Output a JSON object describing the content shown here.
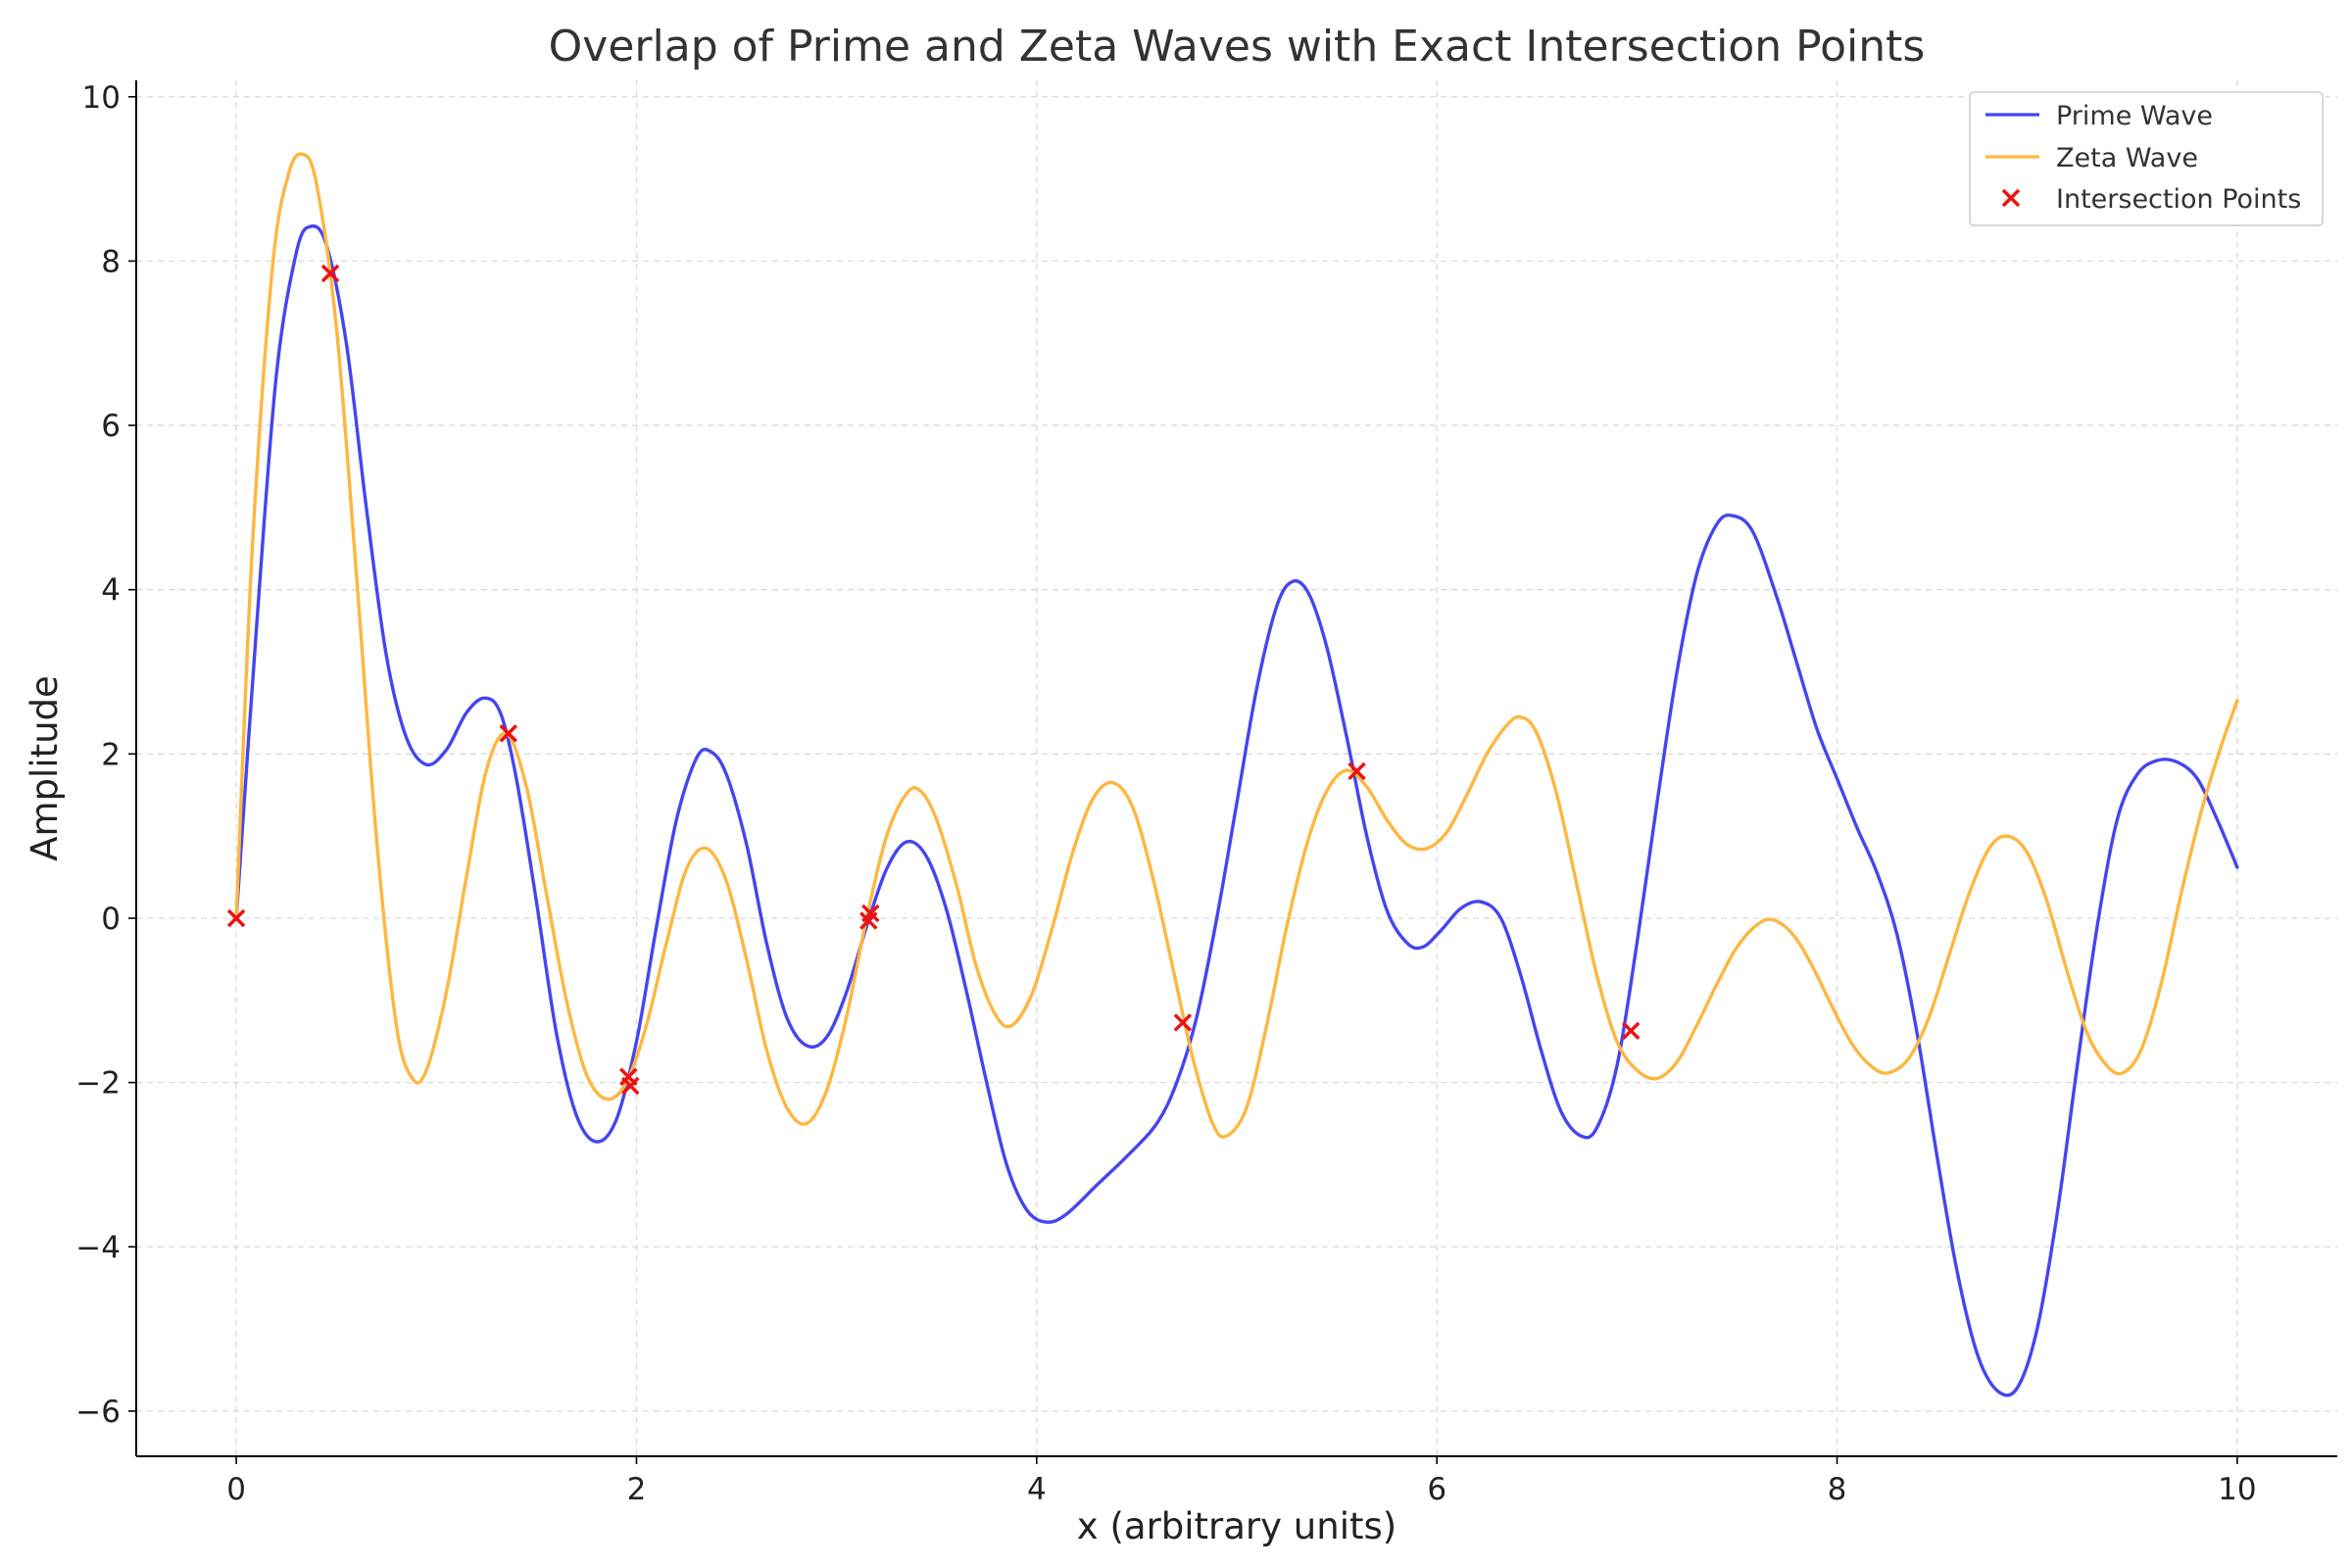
{
  "chart_data": {
    "type": "line",
    "title": "Overlap of Prime and Zeta Waves with Exact Intersection Points",
    "xlabel": "x (arbitrary units)",
    "ylabel": "Amplitude",
    "xlim": [
      -0.5,
      10.5
    ],
    "ylim": [
      -6.55,
      10.2
    ],
    "xticks": [
      0,
      2,
      4,
      6,
      8,
      10
    ],
    "yticks": [
      -6,
      -4,
      -2,
      0,
      2,
      4,
      6,
      8,
      10
    ],
    "xtick_labels": [
      "0",
      "2",
      "4",
      "6",
      "8",
      "10"
    ],
    "ytick_labels": [
      "−6",
      "−4",
      "−2",
      "0",
      "2",
      "4",
      "6",
      "8",
      "10"
    ],
    "grid": true,
    "legend_position": "top-right",
    "series": [
      {
        "name": "Prime Wave",
        "color": "#4545f0",
        "kind": "line",
        "points": [
          [
            0,
            0
          ],
          [
            0.1,
            3.5
          ],
          [
            0.2,
            6.6
          ],
          [
            0.3,
            8.1
          ],
          [
            0.37,
            8.42
          ],
          [
            0.45,
            8.2
          ],
          [
            0.55,
            7.0
          ],
          [
            0.65,
            5.0
          ],
          [
            0.75,
            3.2
          ],
          [
            0.85,
            2.2
          ],
          [
            0.95,
            1.87
          ],
          [
            1.05,
            2.05
          ],
          [
            1.15,
            2.5
          ],
          [
            1.24,
            2.68
          ],
          [
            1.32,
            2.5
          ],
          [
            1.4,
            1.7
          ],
          [
            1.5,
            0.2
          ],
          [
            1.6,
            -1.4
          ],
          [
            1.7,
            -2.4
          ],
          [
            1.8,
            -2.72
          ],
          [
            1.9,
            -2.45
          ],
          [
            2.0,
            -1.5
          ],
          [
            2.1,
            -0.1
          ],
          [
            2.2,
            1.2
          ],
          [
            2.3,
            1.95
          ],
          [
            2.37,
            2.03
          ],
          [
            2.45,
            1.75
          ],
          [
            2.55,
            0.9
          ],
          [
            2.65,
            -0.3
          ],
          [
            2.75,
            -1.2
          ],
          [
            2.85,
            -1.55
          ],
          [
            2.95,
            -1.45
          ],
          [
            3.05,
            -0.9
          ],
          [
            3.15,
            -0.1
          ],
          [
            3.25,
            0.6
          ],
          [
            3.35,
            0.93
          ],
          [
            3.45,
            0.75
          ],
          [
            3.55,
            0.1
          ],
          [
            3.65,
            -0.9
          ],
          [
            3.75,
            -2.0
          ],
          [
            3.85,
            -3.0
          ],
          [
            3.95,
            -3.55
          ],
          [
            4.05,
            -3.7
          ],
          [
            4.15,
            -3.6
          ],
          [
            4.3,
            -3.25
          ],
          [
            4.45,
            -2.9
          ],
          [
            4.6,
            -2.5
          ],
          [
            4.7,
            -2.0
          ],
          [
            4.8,
            -1.2
          ],
          [
            4.9,
            0.0
          ],
          [
            5.0,
            1.4
          ],
          [
            5.1,
            2.8
          ],
          [
            5.2,
            3.8
          ],
          [
            5.28,
            4.1
          ],
          [
            5.36,
            3.95
          ],
          [
            5.45,
            3.3
          ],
          [
            5.55,
            2.2
          ],
          [
            5.65,
            1.0
          ],
          [
            5.75,
            0.1
          ],
          [
            5.85,
            -0.3
          ],
          [
            5.93,
            -0.35
          ],
          [
            6.02,
            -0.15
          ],
          [
            6.12,
            0.12
          ],
          [
            6.22,
            0.2
          ],
          [
            6.32,
            0.0
          ],
          [
            6.42,
            -0.7
          ],
          [
            6.52,
            -1.6
          ],
          [
            6.62,
            -2.35
          ],
          [
            6.72,
            -2.65
          ],
          [
            6.8,
            -2.55
          ],
          [
            6.9,
            -1.8
          ],
          [
            7.0,
            -0.3
          ],
          [
            7.1,
            1.4
          ],
          [
            7.2,
            3.0
          ],
          [
            7.3,
            4.2
          ],
          [
            7.4,
            4.8
          ],
          [
            7.48,
            4.9
          ],
          [
            7.58,
            4.7
          ],
          [
            7.7,
            3.9
          ],
          [
            7.8,
            3.1
          ],
          [
            7.9,
            2.3
          ],
          [
            8.0,
            1.7
          ],
          [
            8.1,
            1.1
          ],
          [
            8.2,
            0.55
          ],
          [
            8.3,
            -0.2
          ],
          [
            8.4,
            -1.4
          ],
          [
            8.5,
            -2.9
          ],
          [
            8.6,
            -4.3
          ],
          [
            8.7,
            -5.3
          ],
          [
            8.8,
            -5.75
          ],
          [
            8.9,
            -5.72
          ],
          [
            9.0,
            -5.0
          ],
          [
            9.1,
            -3.6
          ],
          [
            9.2,
            -1.8
          ],
          [
            9.3,
            -0.1
          ],
          [
            9.4,
            1.2
          ],
          [
            9.5,
            1.75
          ],
          [
            9.6,
            1.92
          ],
          [
            9.7,
            1.9
          ],
          [
            9.8,
            1.7
          ],
          [
            9.9,
            1.2
          ],
          [
            10.0,
            0.62
          ]
        ]
      },
      {
        "name": "Zeta Wave",
        "color": "#ffb640",
        "kind": "line",
        "points": [
          [
            0,
            0
          ],
          [
            0.08,
            4.5
          ],
          [
            0.18,
            7.9
          ],
          [
            0.26,
            9.05
          ],
          [
            0.33,
            9.3
          ],
          [
            0.4,
            8.95
          ],
          [
            0.5,
            7.2
          ],
          [
            0.6,
            4.2
          ],
          [
            0.7,
            1.0
          ],
          [
            0.8,
            -1.3
          ],
          [
            0.88,
            -1.95
          ],
          [
            0.95,
            -1.85
          ],
          [
            1.05,
            -0.9
          ],
          [
            1.15,
            0.5
          ],
          [
            1.25,
            1.8
          ],
          [
            1.35,
            2.25
          ],
          [
            1.45,
            1.6
          ],
          [
            1.55,
            0.3
          ],
          [
            1.65,
            -1.0
          ],
          [
            1.75,
            -1.9
          ],
          [
            1.85,
            -2.2
          ],
          [
            1.95,
            -2.0
          ],
          [
            2.05,
            -1.3
          ],
          [
            2.15,
            -0.3
          ],
          [
            2.25,
            0.6
          ],
          [
            2.35,
            0.85
          ],
          [
            2.45,
            0.45
          ],
          [
            2.55,
            -0.5
          ],
          [
            2.65,
            -1.6
          ],
          [
            2.75,
            -2.3
          ],
          [
            2.85,
            -2.5
          ],
          [
            2.95,
            -2.1
          ],
          [
            3.05,
            -1.2
          ],
          [
            3.15,
            0.0
          ],
          [
            3.25,
            1.0
          ],
          [
            3.35,
            1.52
          ],
          [
            3.42,
            1.55
          ],
          [
            3.5,
            1.2
          ],
          [
            3.6,
            0.4
          ],
          [
            3.7,
            -0.6
          ],
          [
            3.8,
            -1.2
          ],
          [
            3.88,
            -1.3
          ],
          [
            3.98,
            -0.9
          ],
          [
            4.08,
            -0.1
          ],
          [
            4.18,
            0.8
          ],
          [
            4.28,
            1.45
          ],
          [
            4.38,
            1.65
          ],
          [
            4.48,
            1.35
          ],
          [
            4.58,
            0.5
          ],
          [
            4.68,
            -0.6
          ],
          [
            4.78,
            -1.7
          ],
          [
            4.88,
            -2.5
          ],
          [
            4.95,
            -2.65
          ],
          [
            5.05,
            -2.3
          ],
          [
            5.15,
            -1.3
          ],
          [
            5.25,
            -0.1
          ],
          [
            5.35,
            0.9
          ],
          [
            5.45,
            1.55
          ],
          [
            5.55,
            1.8
          ],
          [
            5.65,
            1.6
          ],
          [
            5.75,
            1.2
          ],
          [
            5.85,
            0.9
          ],
          [
            5.95,
            0.85
          ],
          [
            6.05,
            1.05
          ],
          [
            6.15,
            1.5
          ],
          [
            6.25,
            2.0
          ],
          [
            6.35,
            2.35
          ],
          [
            6.42,
            2.45
          ],
          [
            6.5,
            2.25
          ],
          [
            6.6,
            1.5
          ],
          [
            6.7,
            0.4
          ],
          [
            6.8,
            -0.7
          ],
          [
            6.9,
            -1.5
          ],
          [
            7.0,
            -1.85
          ],
          [
            7.1,
            -1.95
          ],
          [
            7.2,
            -1.75
          ],
          [
            7.3,
            -1.3
          ],
          [
            7.4,
            -0.8
          ],
          [
            7.5,
            -0.35
          ],
          [
            7.6,
            -0.08
          ],
          [
            7.68,
            -0.02
          ],
          [
            7.78,
            -0.2
          ],
          [
            7.88,
            -0.6
          ],
          [
            7.98,
            -1.1
          ],
          [
            8.08,
            -1.55
          ],
          [
            8.18,
            -1.82
          ],
          [
            8.26,
            -1.88
          ],
          [
            8.36,
            -1.7
          ],
          [
            8.46,
            -1.2
          ],
          [
            8.56,
            -0.45
          ],
          [
            8.66,
            0.3
          ],
          [
            8.76,
            0.85
          ],
          [
            8.85,
            1.0
          ],
          [
            8.95,
            0.8
          ],
          [
            9.05,
            0.2
          ],
          [
            9.15,
            -0.65
          ],
          [
            9.25,
            -1.4
          ],
          [
            9.35,
            -1.8
          ],
          [
            9.43,
            -1.88
          ],
          [
            9.52,
            -1.6
          ],
          [
            9.62,
            -0.8
          ],
          [
            9.72,
            0.3
          ],
          [
            9.82,
            1.3
          ],
          [
            9.92,
            2.1
          ],
          [
            10.0,
            2.65
          ]
        ]
      },
      {
        "name": "Intersection Points",
        "color": "#ee1111",
        "kind": "scatter",
        "marker": "x",
        "points": [
          [
            0,
            0
          ],
          [
            0.47,
            7.85
          ],
          [
            1.36,
            2.25
          ],
          [
            1.96,
            -1.93
          ],
          [
            1.97,
            -2.04
          ],
          [
            3.16,
            -0.03
          ],
          [
            3.17,
            0.06
          ],
          [
            4.73,
            -1.27
          ],
          [
            5.6,
            1.79
          ],
          [
            6.97,
            -1.37
          ]
        ]
      }
    ]
  }
}
